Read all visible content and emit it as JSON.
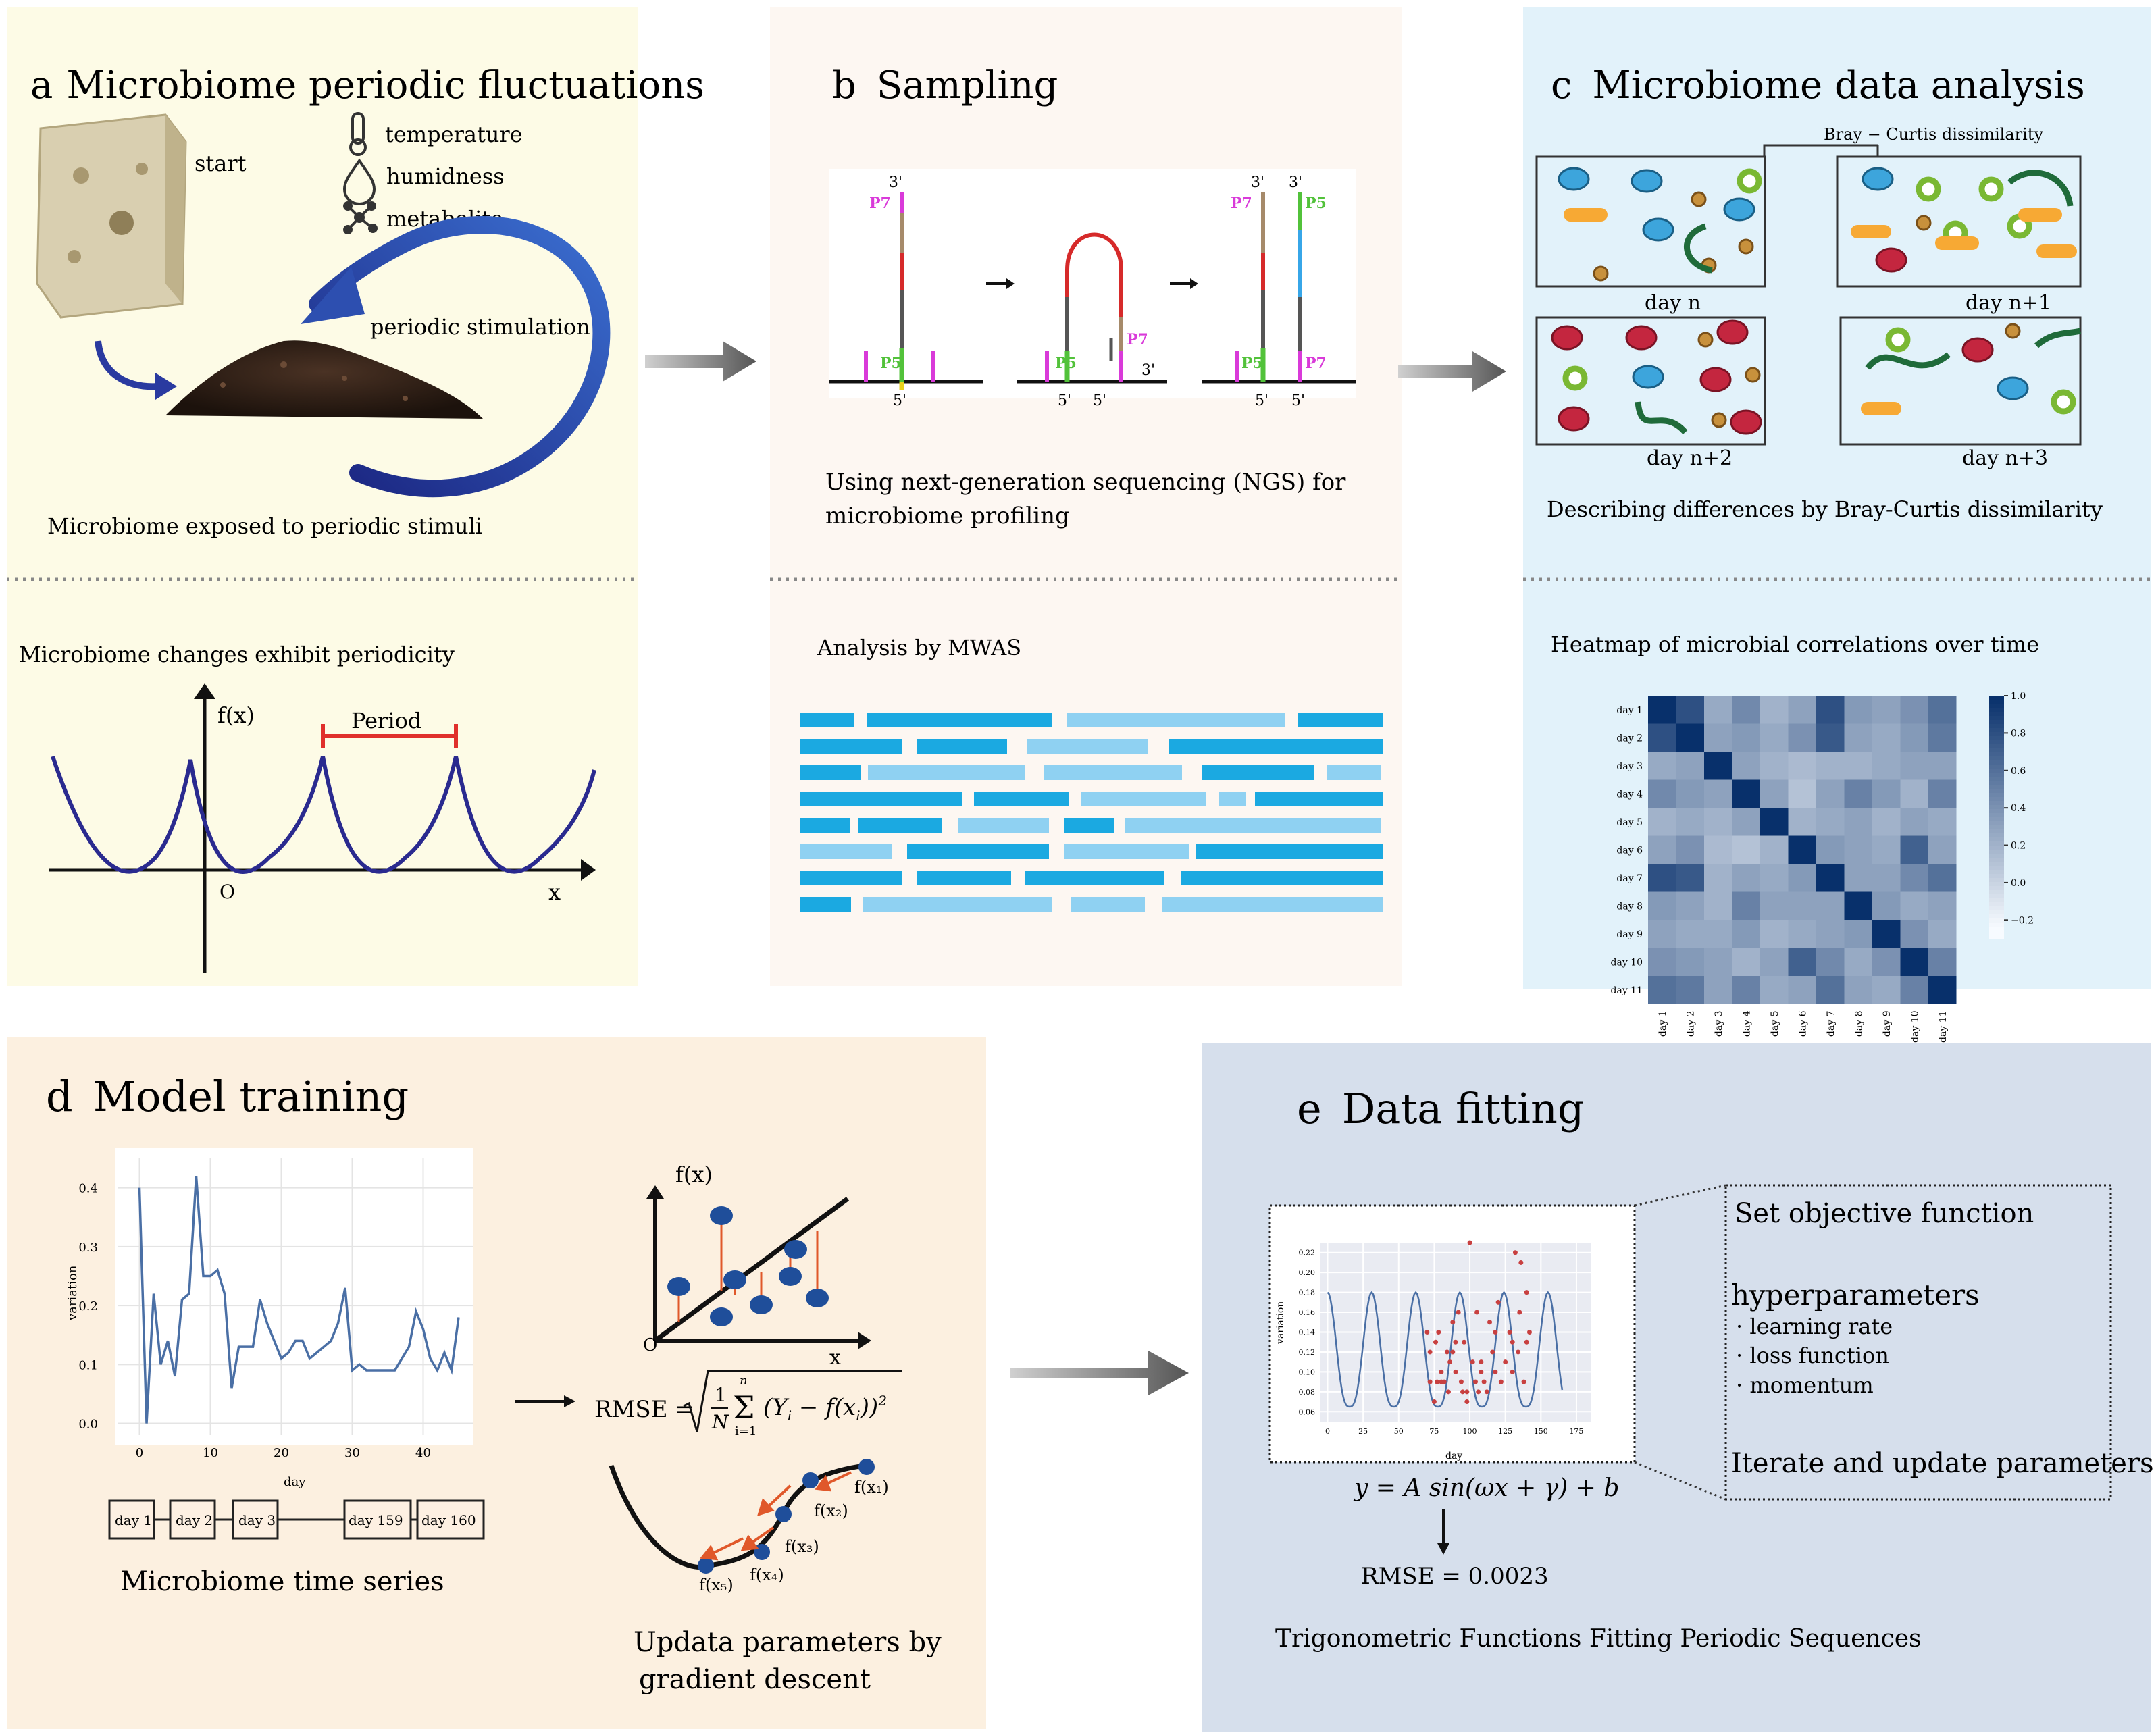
{
  "panel_a": {
    "letter": "a",
    "title": "Microbiome periodic fluctuations",
    "start_label": "start",
    "stimuli": [
      {
        "label": "temperature",
        "icon": "thermometer-icon"
      },
      {
        "label": "humidness",
        "icon": "droplet-icon"
      },
      {
        "label": "metabolite",
        "icon": "molecule-icon"
      }
    ],
    "stimulation_label": "periodic stimulation",
    "caption": "Microbiome exposed to periodic stimuli",
    "lower_caption": "Microbiome changes exhibit periodicity",
    "fx_label": "f(x)",
    "period_label": "Period",
    "origin_label": "O",
    "x_label": "x"
  },
  "panel_b": {
    "letter": "b",
    "title": "Sampling",
    "caption_line1": "Using next-generation sequencing (NGS) for",
    "caption_line2": "microbiome profiling",
    "lower_caption": "Analysis by MWAS",
    "seq_labels": {
      "three_prime": "3'",
      "five_prime": "5'",
      "p5": "P5",
      "p7": "P7"
    },
    "colors": {
      "dark_bar": "#1ba9e1",
      "light_bar": "#8fd1f2"
    }
  },
  "panel_c": {
    "letter": "c",
    "title": "Microbiome data analysis",
    "bray_label": "Bray − Curtis dissimilarity",
    "days": [
      "day n",
      "day n+1",
      "day n+2",
      "day n+3"
    ],
    "caption": "Describing differences by Bray-Curtis dissimilarity",
    "lower_caption": "Heatmap of microbial correlations over time",
    "heatmap_days": [
      "day 1",
      "day 2",
      "day 3",
      "day 4",
      "day 5",
      "day 6",
      "day 7",
      "day 8",
      "day 9",
      "day 10",
      "day 11"
    ],
    "colorbar_ticks": [
      "1.0",
      "0.8",
      "0.6",
      "0.4",
      "0.2",
      "0.0",
      "−0.2"
    ]
  },
  "panel_d": {
    "letter": "d",
    "title": "Model training",
    "ts_xlabel": "day",
    "ts_ylabel": "variation",
    "ts_yticks": [
      "0.4",
      "0.3",
      "0.2",
      "0.1",
      "0.0"
    ],
    "ts_xticks": [
      "0",
      "10",
      "20",
      "30",
      "40"
    ],
    "day_boxes": [
      "day 1",
      "day 2",
      "day 3",
      "day 159",
      "day 160"
    ],
    "ts_caption": "Microbiome time series",
    "fx_label": "f(x)",
    "origin_label": "O",
    "x_label": "x",
    "rmse_lhs": "RMSE =",
    "rmse_sum_top": "n",
    "rmse_sum_bottom": "i=1",
    "rmse_frac_top": "1",
    "rmse_frac_bottom": "N",
    "rmse_term": "(Y",
    "rmse_term_sub": "i",
    "rmse_term_mid": " − f(x",
    "rmse_term_end": "))",
    "rmse_term_exp": "2",
    "gd_labels": [
      "f(x₁)",
      "f(x₂)",
      "f(x₃)",
      "f(x₄)",
      "f(x₅)"
    ],
    "gd_caption_line1": "Updata parameters by",
    "gd_caption_line2": "gradient descent"
  },
  "panel_e": {
    "letter": "e",
    "title": "Data fitting",
    "fit_xlabel": "day",
    "fit_ylabel": "variation",
    "fit_yticks": [
      "0.22",
      "0.20",
      "0.18",
      "0.16",
      "0.14",
      "0.12",
      "0.10",
      "0.08",
      "0.06"
    ],
    "fit_xticks": [
      "0",
      "25",
      "50",
      "75",
      "100",
      "125",
      "150",
      "175"
    ],
    "formula": "y = A sin(ωx + γ) + b",
    "rmse": "RMSE = 0.0023",
    "objective": "Set objective function",
    "hyper_title": "hyperparameters",
    "hyper_items": [
      "learning rate",
      "loss function",
      "momentum"
    ],
    "iterate": "Iterate and update parameters",
    "caption": "Trigonometric Functions Fitting Periodic Sequences"
  },
  "time_series": {
    "x": [
      0,
      1,
      2,
      3,
      4,
      5,
      6,
      7,
      8,
      9,
      10,
      11,
      12,
      13,
      14,
      15,
      16,
      17,
      18,
      19,
      20,
      21,
      22,
      23,
      24,
      25,
      26,
      27,
      28,
      29,
      30,
      31,
      32,
      33,
      34,
      35,
      36,
      37,
      38,
      39,
      40,
      41,
      42,
      43,
      44,
      45
    ],
    "y": [
      0.4,
      0.0,
      0.22,
      0.1,
      0.14,
      0.08,
      0.21,
      0.22,
      0.42,
      0.25,
      0.25,
      0.26,
      0.22,
      0.06,
      0.13,
      0.13,
      0.13,
      0.21,
      0.17,
      0.14,
      0.11,
      0.12,
      0.14,
      0.14,
      0.11,
      0.12,
      0.13,
      0.14,
      0.17,
      0.23,
      0.09,
      0.1,
      0.09,
      0.09,
      0.09,
      0.09,
      0.09,
      0.11,
      0.13,
      0.19,
      0.16,
      0.11,
      0.09,
      0.12,
      0.09,
      0.18
    ]
  },
  "fit_points": {
    "x": [
      70,
      72,
      75,
      76,
      78,
      80,
      82,
      84,
      85,
      86,
      88,
      90,
      92,
      94,
      95,
      96,
      98,
      100,
      102,
      104,
      105,
      106,
      108,
      110,
      112,
      114,
      116,
      118,
      120,
      122,
      125,
      128,
      130,
      132,
      134,
      135,
      136,
      138,
      140,
      142,
      72,
      80,
      90,
      98,
      108,
      118,
      130,
      140,
      77,
      88
    ],
    "y": [
      0.14,
      0.09,
      0.07,
      0.13,
      0.14,
      0.1,
      0.09,
      0.12,
      0.08,
      0.11,
      0.15,
      0.1,
      0.16,
      0.09,
      0.08,
      0.13,
      0.07,
      0.23,
      0.11,
      0.09,
      0.16,
      0.08,
      0.1,
      0.09,
      0.08,
      0.15,
      0.12,
      0.1,
      0.17,
      0.09,
      0.11,
      0.14,
      0.13,
      0.22,
      0.12,
      0.16,
      0.21,
      0.09,
      0.18,
      0.14,
      0.12,
      0.09,
      0.13,
      0.08,
      0.11,
      0.14,
      0.1,
      0.13,
      0.09,
      0.12
    ]
  },
  "heatmap": {
    "values": [
      [
        1.0,
        0.8,
        0.25,
        0.45,
        0.2,
        0.3,
        0.8,
        0.35,
        0.3,
        0.4,
        0.6
      ],
      [
        0.8,
        1.0,
        0.3,
        0.35,
        0.25,
        0.4,
        0.75,
        0.3,
        0.25,
        0.35,
        0.55
      ],
      [
        0.25,
        0.3,
        1.0,
        0.3,
        0.2,
        0.15,
        0.2,
        0.2,
        0.25,
        0.3,
        0.3
      ],
      [
        0.45,
        0.35,
        0.3,
        1.0,
        0.3,
        0.1,
        0.3,
        0.5,
        0.35,
        0.2,
        0.5
      ],
      [
        0.2,
        0.25,
        0.2,
        0.3,
        1.0,
        0.2,
        0.25,
        0.3,
        0.2,
        0.3,
        0.25
      ],
      [
        0.3,
        0.4,
        0.15,
        0.1,
        0.2,
        1.0,
        0.35,
        0.3,
        0.25,
        0.7,
        0.3
      ],
      [
        0.8,
        0.75,
        0.2,
        0.3,
        0.25,
        0.35,
        1.0,
        0.3,
        0.3,
        0.45,
        0.6
      ],
      [
        0.35,
        0.3,
        0.2,
        0.5,
        0.3,
        0.3,
        0.3,
        1.0,
        0.35,
        0.25,
        0.3
      ],
      [
        0.3,
        0.25,
        0.25,
        0.35,
        0.2,
        0.25,
        0.3,
        0.35,
        1.0,
        0.4,
        0.25
      ],
      [
        0.4,
        0.35,
        0.3,
        0.2,
        0.3,
        0.7,
        0.45,
        0.25,
        0.4,
        1.0,
        0.5
      ],
      [
        0.6,
        0.55,
        0.3,
        0.5,
        0.25,
        0.3,
        0.6,
        0.3,
        0.25,
        0.5,
        1.0
      ]
    ]
  }
}
